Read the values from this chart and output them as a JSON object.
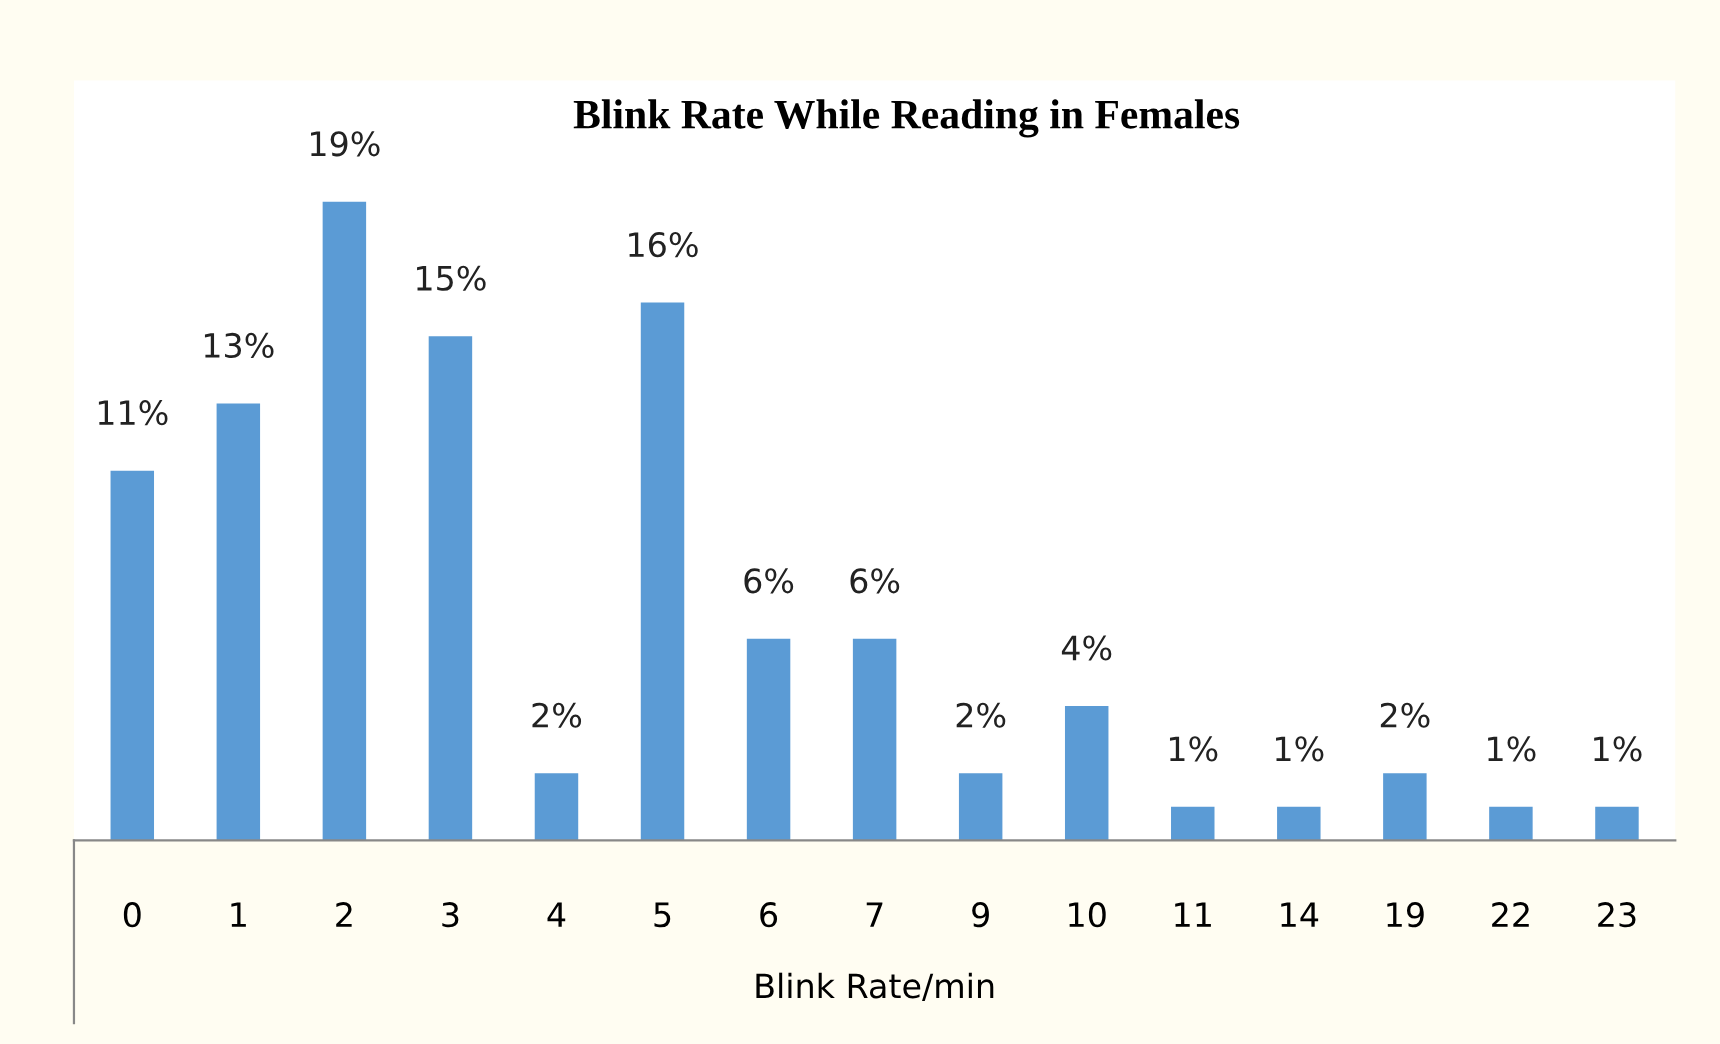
{
  "chart_data": {
    "type": "bar",
    "title": "Blink Rate While Reading in Females",
    "xlabel": "Blink Rate/min",
    "categories": [
      "0",
      "1",
      "2",
      "3",
      "4",
      "5",
      "6",
      "7",
      "9",
      "10",
      "11",
      "14",
      "19",
      "22",
      "23"
    ],
    "values": [
      11,
      13,
      19,
      15,
      2,
      16,
      6,
      6,
      2,
      4,
      1,
      1,
      2,
      1,
      1
    ],
    "value_labels": [
      "11%",
      "13%",
      "19%",
      "15%",
      "2%",
      "16%",
      "6%",
      "6%",
      "2%",
      "4%",
      "1%",
      "1%",
      "2%",
      "1%",
      "1%"
    ],
    "color": "#5b9bd5",
    "grid": false,
    "legend": false
  }
}
